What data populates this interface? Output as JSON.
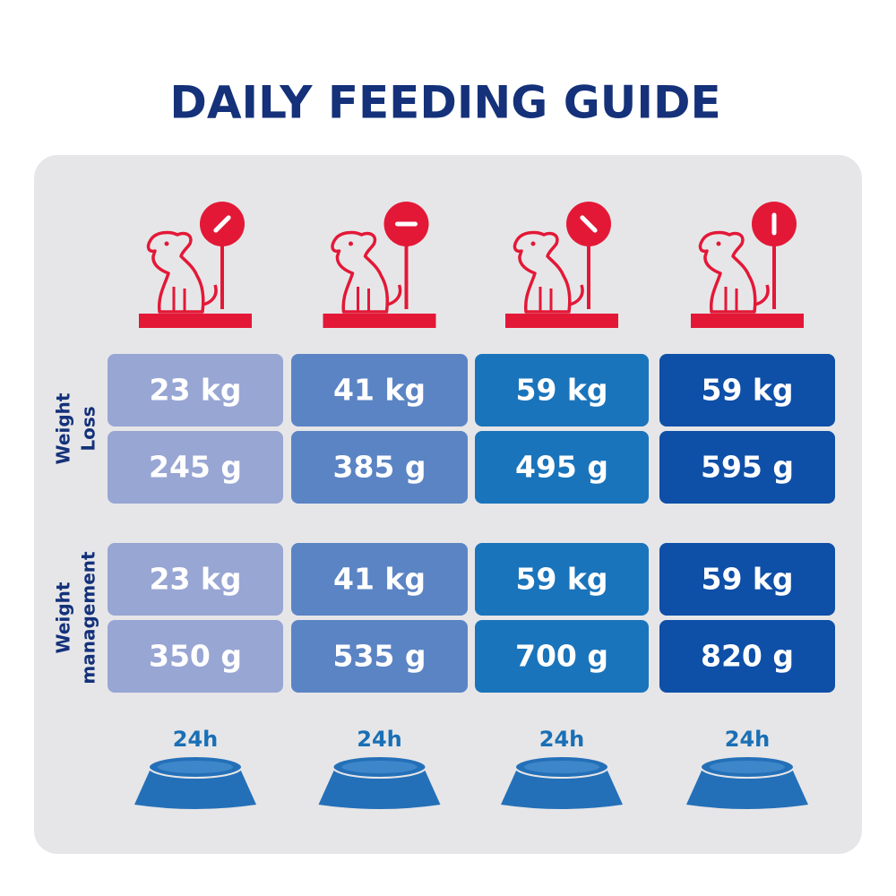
{
  "title": "DAILY FEEDING GUIDE",
  "sections": [
    {
      "label": [
        "Weight",
        "Loss"
      ],
      "rows": [
        [
          "23 kg",
          "41 kg",
          "59 kg",
          "59 kg"
        ],
        [
          "245 g",
          "385 g",
          "495 g",
          "595 g"
        ]
      ]
    },
    {
      "label": [
        "Weight",
        "management"
      ],
      "rows": [
        [
          "23 kg",
          "41 kg",
          "59 kg",
          "59 kg"
        ],
        [
          "350 g",
          "535 g",
          "700 g",
          "820 g"
        ]
      ]
    }
  ],
  "bowls": [
    "24h",
    "24h",
    "24h",
    "24h"
  ]
}
